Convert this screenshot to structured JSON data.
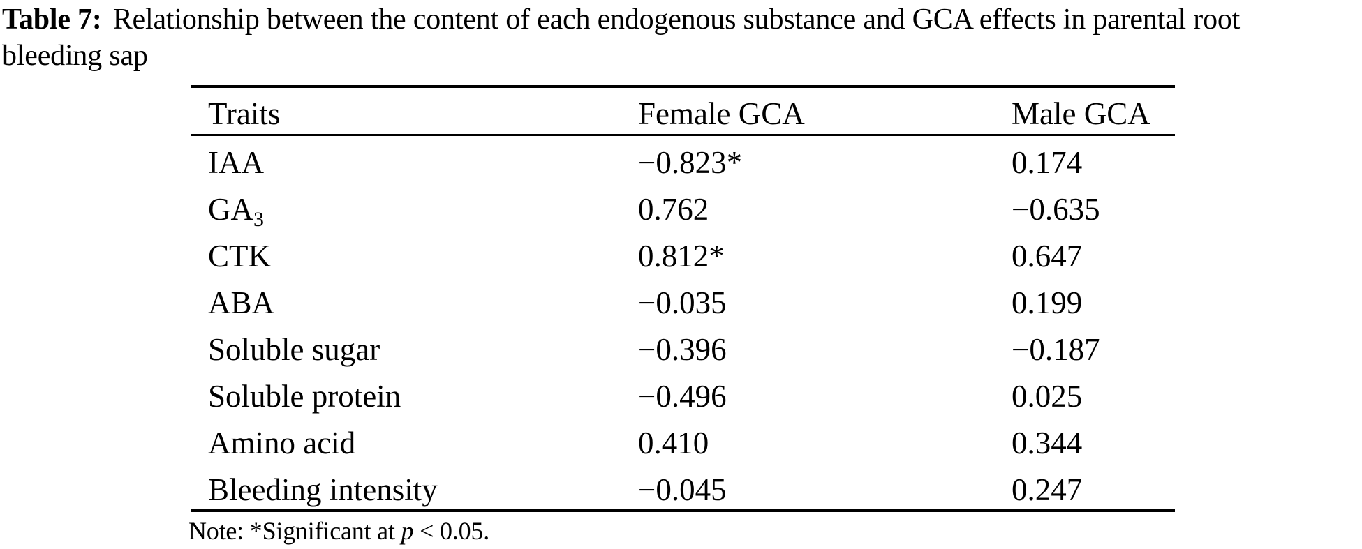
{
  "caption": {
    "label": "Table 7:",
    "line1": "Relationship between the content of each endogenous substance and GCA effects in parental root",
    "line2": "bleeding sap"
  },
  "table": {
    "columns": [
      "Traits",
      "Female GCA",
      "Male GCA"
    ],
    "rows": [
      {
        "trait": "IAA",
        "trait_sub": "",
        "female": "−0.823*",
        "male": "0.174"
      },
      {
        "trait": "GA",
        "trait_sub": "3",
        "female": "0.762",
        "male": "−0.635"
      },
      {
        "trait": "CTK",
        "trait_sub": "",
        "female": "0.812*",
        "male": "0.647"
      },
      {
        "trait": "ABA",
        "trait_sub": "",
        "female": "−0.035",
        "male": "0.199"
      },
      {
        "trait": "Soluble sugar",
        "trait_sub": "",
        "female": "−0.396",
        "male": "−0.187"
      },
      {
        "trait": "Soluble protein",
        "trait_sub": "",
        "female": "−0.496",
        "male": "0.025"
      },
      {
        "trait": "Amino acid",
        "trait_sub": "",
        "female": "0.410",
        "male": "0.344"
      },
      {
        "trait": "Bleeding intensity",
        "trait_sub": "",
        "female": "−0.045",
        "male": "0.247"
      }
    ]
  },
  "note": {
    "prefix": "Note: *Significant at ",
    "symbol": "p",
    "suffix": " < 0.05."
  },
  "colors": {
    "text": "#000000",
    "background": "#ffffff"
  }
}
